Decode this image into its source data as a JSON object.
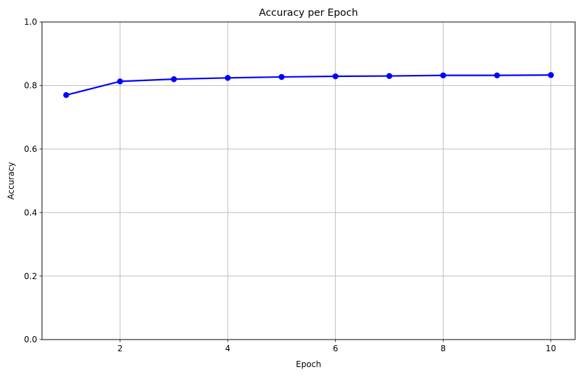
{
  "chart_data": {
    "type": "line",
    "title": "Accuracy per Epoch",
    "xlabel": "Epoch",
    "ylabel": "Accuracy",
    "x": [
      1,
      2,
      3,
      4,
      5,
      6,
      7,
      8,
      9,
      10
    ],
    "series": [
      {
        "values": [
          0.77,
          0.813,
          0.82,
          0.824,
          0.827,
          0.829,
          0.83,
          0.832,
          0.832,
          0.833
        ],
        "color": "#0000ff",
        "marker": "circle"
      }
    ],
    "xlim": [
      0.55,
      10.45
    ],
    "ylim": [
      0.0,
      1.0
    ],
    "xticks": [
      2,
      4,
      6,
      8,
      10
    ],
    "xtick_labels": [
      "2",
      "4",
      "6",
      "8",
      "10"
    ],
    "yticks": [
      0.0,
      0.2,
      0.4,
      0.6,
      0.8,
      1.0
    ],
    "ytick_labels": [
      "0.0",
      "0.2",
      "0.4",
      "0.6",
      "0.8",
      "1.0"
    ],
    "grid": true
  }
}
